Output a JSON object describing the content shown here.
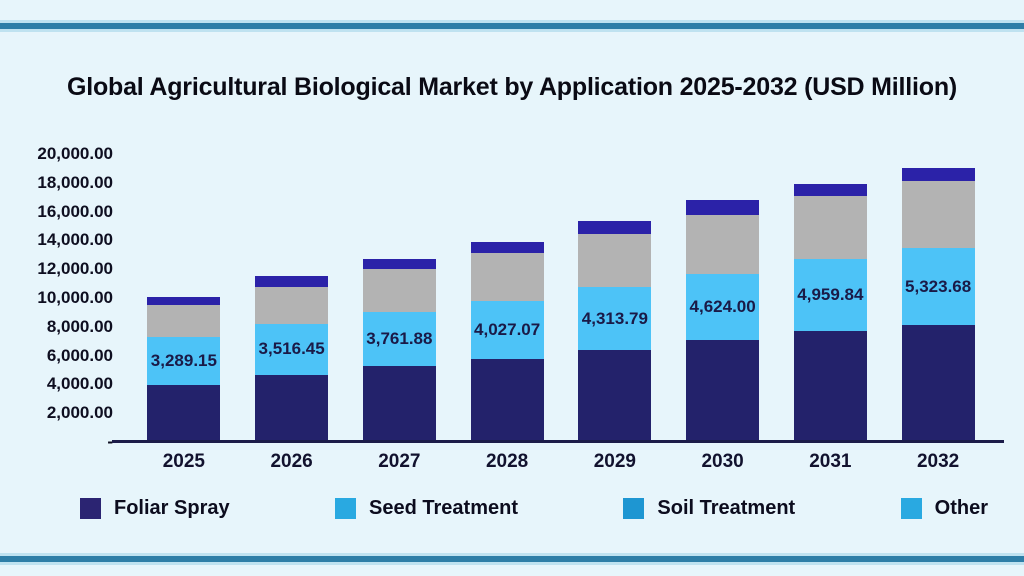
{
  "page": {
    "background": "#E7F5FB",
    "border_line_color": "#2E7EA7"
  },
  "chart_data": {
    "type": "bar",
    "stacked": true,
    "title": "Global Agricultural Biological Market by Application 2025-2032 (USD Million)",
    "unit": "USD Million",
    "categories": [
      "2025",
      "2026",
      "2027",
      "2028",
      "2029",
      "2030",
      "2031",
      "2032"
    ],
    "series": [
      {
        "name": "Foliar Spray",
        "color": "#23226B",
        "values": [
          3980,
          4680,
          5280,
          5790,
          6420,
          7060,
          7740,
          8130
        ]
      },
      {
        "name": "Seed Treatment",
        "color": "#4DC3F7",
        "values": [
          3289.15,
          3516.45,
          3761.88,
          4027.07,
          4313.79,
          4624.0,
          4959.84,
          5323.68
        ]
      },
      {
        "name": "Soil Treatment",
        "color": "#B3B3B3",
        "values": [
          2250,
          2600,
          2940,
          3320,
          3710,
          4050,
          4410,
          4680
        ]
      },
      {
        "name": "Other",
        "color": "#2B22A8",
        "values": [
          530,
          700,
          760,
          740,
          880,
          1040,
          830,
          880
        ]
      }
    ],
    "data_labels": {
      "series": "Seed Treatment",
      "values": [
        "3,289.15",
        "3,516.45",
        "3,761.88",
        "4,027.07",
        "4,313.79",
        "4,624.00",
        "4,959.84",
        "5,323.68"
      ]
    },
    "ylim": [
      0,
      20000
    ],
    "ytick_labels": [
      "20,000.00",
      "18,000.00",
      "16,000.00",
      "14,000.00",
      "12,000.00",
      "10,000.00",
      "8,000.00",
      "6,000.00",
      "4,000.00",
      "2,000.00",
      "-"
    ],
    "grid": false,
    "legend_position": "bottom",
    "legend": [
      {
        "label": "Foliar Spray",
        "swatch": "#2B2472"
      },
      {
        "label": "Seed Treatment",
        "swatch": "#29A9E1"
      },
      {
        "label": "Soil Treatment",
        "swatch": "#1E96D2"
      },
      {
        "label": "Other",
        "swatch": "#29A9E1"
      }
    ]
  }
}
